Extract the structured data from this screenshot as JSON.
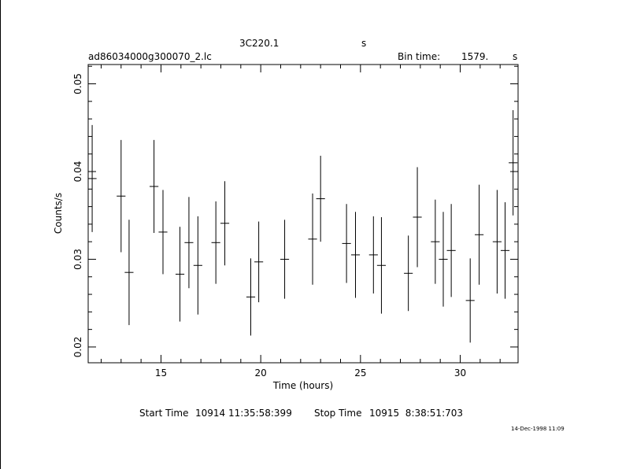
{
  "header": {
    "object": "3C220.1",
    "units": "s",
    "filename": "ad86034000g300070_2.lc",
    "bin_label": "Bin time:",
    "bin_value": "1579.",
    "bin_unit": "s"
  },
  "footer": {
    "start_label": "Start Time",
    "start_value": "10914 11:35:58:399",
    "stop_label": "Stop Time",
    "stop_value": "10915  8:38:51:703",
    "timestamp": "14-Dec-1998 11:09"
  },
  "chart_data": {
    "type": "scatter",
    "xlabel": "Time (hours)",
    "ylabel": "Counts/s",
    "xlim": [
      11.35,
      32.9
    ],
    "ylim": [
      0.0182,
      0.0522
    ],
    "xticks": [
      15,
      20,
      25,
      30
    ],
    "yticks": [
      0.02,
      0.03,
      0.04,
      0.05
    ],
    "x_half_width": 0.22,
    "points": [
      {
        "x": 11.55,
        "y": 0.0392,
        "yerr": 0.0061
      },
      {
        "x": 13.0,
        "y": 0.0372,
        "yerr": 0.0064
      },
      {
        "x": 13.4,
        "y": 0.0285,
        "yerr": 0.006
      },
      {
        "x": 14.65,
        "y": 0.0383,
        "yerr": 0.0053
      },
      {
        "x": 15.1,
        "y": 0.0331,
        "yerr": 0.0048
      },
      {
        "x": 15.95,
        "y": 0.0283,
        "yerr": 0.0054
      },
      {
        "x": 16.4,
        "y": 0.0319,
        "yerr": 0.0052
      },
      {
        "x": 16.85,
        "y": 0.0293,
        "yerr": 0.0056
      },
      {
        "x": 17.75,
        "y": 0.0319,
        "yerr": 0.0047
      },
      {
        "x": 18.2,
        "y": 0.0341,
        "yerr": 0.0048
      },
      {
        "x": 19.5,
        "y": 0.0257,
        "yerr": 0.0044
      },
      {
        "x": 19.9,
        "y": 0.0297,
        "yerr": 0.0046
      },
      {
        "x": 21.2,
        "y": 0.03,
        "yerr": 0.0045
      },
      {
        "x": 22.6,
        "y": 0.0323,
        "yerr": 0.0052
      },
      {
        "x": 23.0,
        "y": 0.0369,
        "yerr": 0.0049
      },
      {
        "x": 24.3,
        "y": 0.0318,
        "yerr": 0.0045
      },
      {
        "x": 24.75,
        "y": 0.0305,
        "yerr": 0.0049
      },
      {
        "x": 25.65,
        "y": 0.0305,
        "yerr": 0.0044
      },
      {
        "x": 26.05,
        "y": 0.0293,
        "yerr": 0.0055
      },
      {
        "x": 27.4,
        "y": 0.0284,
        "yerr": 0.0043
      },
      {
        "x": 27.85,
        "y": 0.0348,
        "yerr": 0.0057
      },
      {
        "x": 28.75,
        "y": 0.032,
        "yerr": 0.0048
      },
      {
        "x": 29.15,
        "y": 0.03,
        "yerr": 0.0054
      },
      {
        "x": 29.55,
        "y": 0.031,
        "yerr": 0.0053
      },
      {
        "x": 30.5,
        "y": 0.0253,
        "yerr": 0.0048
      },
      {
        "x": 30.95,
        "y": 0.0328,
        "yerr": 0.0057
      },
      {
        "x": 31.85,
        "y": 0.032,
        "yerr": 0.0059
      },
      {
        "x": 32.25,
        "y": 0.031,
        "yerr": 0.0055
      },
      {
        "x": 32.65,
        "y": 0.041,
        "yerr": 0.006
      }
    ]
  }
}
